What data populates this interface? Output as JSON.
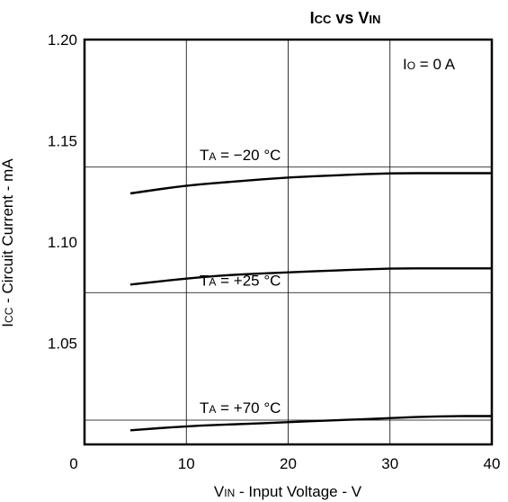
{
  "chart_data": {
    "type": "line",
    "title": {
      "main": "I",
      "main_sub": "CC",
      "mid": " vs ",
      "v": "V",
      "v_sub": "IN"
    },
    "xlabel": {
      "main": "V",
      "sub": "IN",
      "rest": " - Input Voltage - V"
    },
    "ylabel": {
      "main": "I",
      "sub": "CC",
      "rest": " - Circuit Current - mA"
    },
    "xlim": [
      0,
      40
    ],
    "ylim": [
      1.0,
      1.2
    ],
    "x_ticks": [
      "0",
      "10",
      "20",
      "30",
      "40"
    ],
    "x_tick_values": [
      0,
      10,
      20,
      30,
      40
    ],
    "y_ticks": [
      "1.20",
      "1.15",
      "1.10",
      "1.05"
    ],
    "y_tick_values": [
      1.2,
      1.15,
      1.1,
      1.05
    ],
    "grid": true,
    "annotation": {
      "main": "I",
      "sub": "O",
      "rest": " = 0 A"
    },
    "reference_lines": [
      1.137,
      1.075,
      1.012
    ],
    "series": [
      {
        "name": "TA = −20 °C",
        "label_main": "T",
        "label_sub": "A",
        "label_rest": " = −20 °C",
        "x": [
          4.5,
          10,
          15,
          20,
          25,
          30,
          35,
          40
        ],
        "y": [
          1.124,
          1.128,
          1.13,
          1.132,
          1.133,
          1.134,
          1.134,
          1.134
        ]
      },
      {
        "name": "TA = +25 °C",
        "label_main": "T",
        "label_sub": "A",
        "label_rest": " = +25 °C",
        "x": [
          4.5,
          10,
          15,
          20,
          25,
          30,
          35,
          40
        ],
        "y": [
          1.079,
          1.082,
          1.084,
          1.085,
          1.086,
          1.087,
          1.087,
          1.087
        ]
      },
      {
        "name": "TA = +70 °C",
        "label_main": "T",
        "label_sub": "A",
        "label_rest": " = +70 °C",
        "x": [
          4.5,
          10,
          15,
          20,
          25,
          30,
          35,
          40
        ],
        "y": [
          1.007,
          1.009,
          1.01,
          1.011,
          1.012,
          1.013,
          1.014,
          1.014
        ]
      }
    ]
  }
}
